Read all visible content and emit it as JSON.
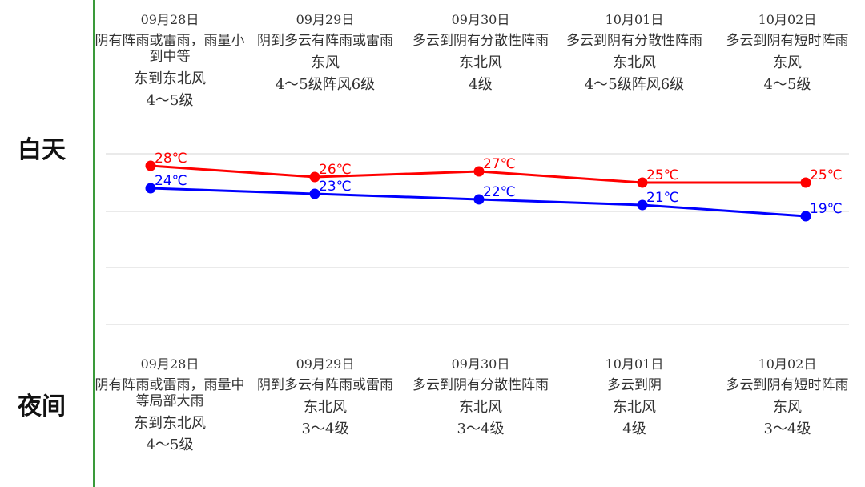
{
  "labels": {
    "day": "白天",
    "night": "夜间"
  },
  "day": [
    {
      "date": "09月28日",
      "desc": "阴有阵雨或雷雨，雨量小到中等",
      "wind": "东到东北风",
      "level": "4～5级"
    },
    {
      "date": "09月29日",
      "desc": "阴到多云有阵雨或雷雨",
      "wind": "东风",
      "level": "4～5级阵风6级"
    },
    {
      "date": "09月30日",
      "desc": "多云到阴有分散性阵雨",
      "wind": "东北风",
      "level": "4级"
    },
    {
      "date": "10月01日",
      "desc": "多云到阴有分散性阵雨",
      "wind": "东北风",
      "level": "4～5级阵风6级"
    },
    {
      "date": "10月02日",
      "desc": "多云到阴有短时阵雨",
      "wind": "东风",
      "level": "4～5级"
    }
  ],
  "night": [
    {
      "date": "09月28日",
      "desc": "阴有阵雨或雷雨，雨量中等局部大雨",
      "wind": "东到东北风",
      "level": "4～5级"
    },
    {
      "date": "09月29日",
      "desc": "阴到多云有阵雨或雷雨",
      "wind": "东北风",
      "level": "3～4级"
    },
    {
      "date": "09月30日",
      "desc": "多云到阴有分散性阵雨",
      "wind": "东北风",
      "level": "3～4级"
    },
    {
      "date": "10月01日",
      "desc": "多云到阴",
      "wind": "东北风",
      "level": "4级"
    },
    {
      "date": "10月02日",
      "desc": "多云到阴有短时阵雨",
      "wind": "东风",
      "level": "3～4级"
    }
  ],
  "chart_data": {
    "type": "line",
    "categories": [
      "09月28日",
      "09月29日",
      "09月30日",
      "10月01日",
      "10月02日"
    ],
    "series": [
      {
        "values": [
          28,
          26,
          27,
          25,
          25
        ],
        "color": "#ff0000",
        "labels": [
          "28℃",
          "26℃",
          "27℃",
          "25℃",
          "25℃"
        ]
      },
      {
        "values": [
          24,
          23,
          22,
          21,
          19
        ],
        "color": "#0000ff",
        "labels": [
          "24℃",
          "23℃",
          "22℃",
          "21℃",
          "19℃"
        ]
      }
    ],
    "grid": true
  }
}
